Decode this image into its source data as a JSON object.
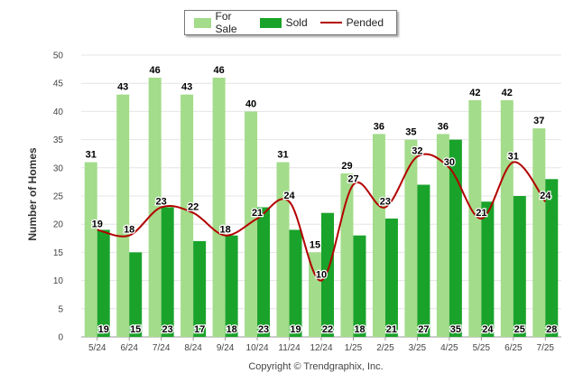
{
  "legend": [
    {
      "label": "For Sale",
      "color": "#a3dc8a"
    },
    {
      "label": "Sold",
      "color": "#1aa32a"
    },
    {
      "label": "Pended",
      "color": "#b30000"
    }
  ],
  "copyright": "Copyright © Trendgraphix, Inc.",
  "chart_data": {
    "type": "bar",
    "title": "",
    "xlabel": "",
    "ylabel": "Number of Homes",
    "ylim": [
      0,
      50
    ],
    "yticks": [
      0,
      5,
      10,
      15,
      20,
      25,
      30,
      35,
      40,
      45,
      50
    ],
    "grid": true,
    "legend_position": "top-center",
    "categories": [
      "5/24",
      "6/24",
      "7/24",
      "8/24",
      "9/24",
      "10/24",
      "11/24",
      "12/24",
      "1/25",
      "2/25",
      "3/25",
      "4/25",
      "5/25",
      "6/25",
      "7/25"
    ],
    "series": [
      {
        "name": "For Sale",
        "kind": "bar",
        "color": "#a3dc8a",
        "values": [
          31,
          43,
          46,
          43,
          46,
          40,
          31,
          15,
          29,
          36,
          35,
          36,
          42,
          42,
          37
        ]
      },
      {
        "name": "Sold",
        "kind": "bar",
        "color": "#1aa32a",
        "values": [
          19,
          15,
          23,
          17,
          18,
          23,
          19,
          22,
          18,
          21,
          27,
          35,
          24,
          25,
          28
        ]
      },
      {
        "name": "Pended",
        "kind": "line",
        "color": "#b30000",
        "values": [
          19,
          18,
          23,
          22,
          18,
          21,
          24,
          10,
          27,
          23,
          32,
          30,
          21,
          31,
          24
        ]
      }
    ]
  }
}
